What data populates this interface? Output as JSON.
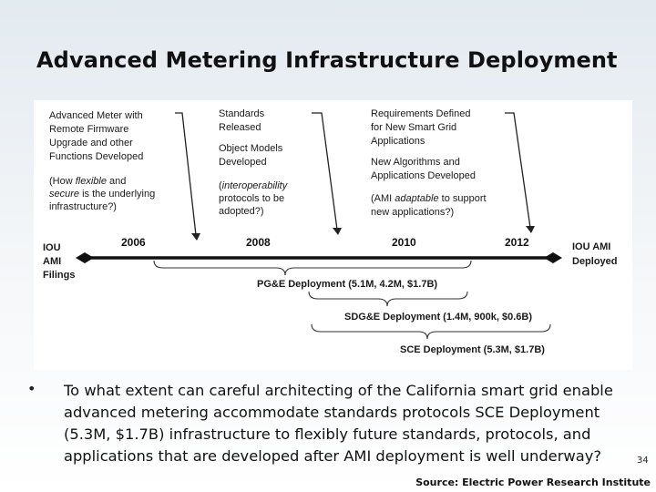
{
  "title": "Advanced Metering Infrastructure Deployment",
  "diagram": {
    "box1": {
      "lines": [
        "Advanced Meter with",
        "Remote Firmware",
        "Upgrade and other",
        "Functions Developed"
      ],
      "q_prefix": "(How ",
      "q_flexible": "flexible",
      "q_and": " and",
      "q_secure": "secure",
      "q_rest1": " is the underlying",
      "q_rest2": "infrastructure?)"
    },
    "box2": {
      "lines1": [
        "Standards",
        "Released"
      ],
      "lines2": [
        "Object Models",
        "Developed"
      ],
      "q_open": "(",
      "q_interop": "interoperability",
      "q_rest1": "protocols to be",
      "q_rest2": "adopted?)"
    },
    "box3": {
      "lines1": [
        "Requirements Defined",
        "for New Smart Grid",
        "Applications"
      ],
      "lines2": [
        "New Algorithms and",
        "Applications Developed"
      ],
      "q_open": "(AMI ",
      "q_adaptable": "adaptable",
      "q_rest1": " to support",
      "q_rest2": "new applications?)"
    },
    "timeline": {
      "left_label": [
        "IOU",
        "AMI",
        "Filings"
      ],
      "right_label": [
        "IOU AMI",
        "Deployed"
      ],
      "years": [
        "2006",
        "2008",
        "2010",
        "2012"
      ]
    },
    "deployments": [
      "PG&E Deployment (5.1M, 4.2M, $1.7B)",
      "SDG&E Deployment (1.4M, 900k, $0.6B)",
      "SCE Deployment (5.3M, $1.7B)"
    ]
  },
  "bullet": {
    "symbol": "•",
    "text": "To what extent can careful architecting of the California smart grid enable advanced metering accommodate standards protocols SCE Deployment (5.3M, $1.7B) infrastructure to flexibly future standards, protocols, and applications that are developed after AMI deployment is well underway?"
  },
  "page_number": "34",
  "source": "Source: Electric Power Research Institute"
}
